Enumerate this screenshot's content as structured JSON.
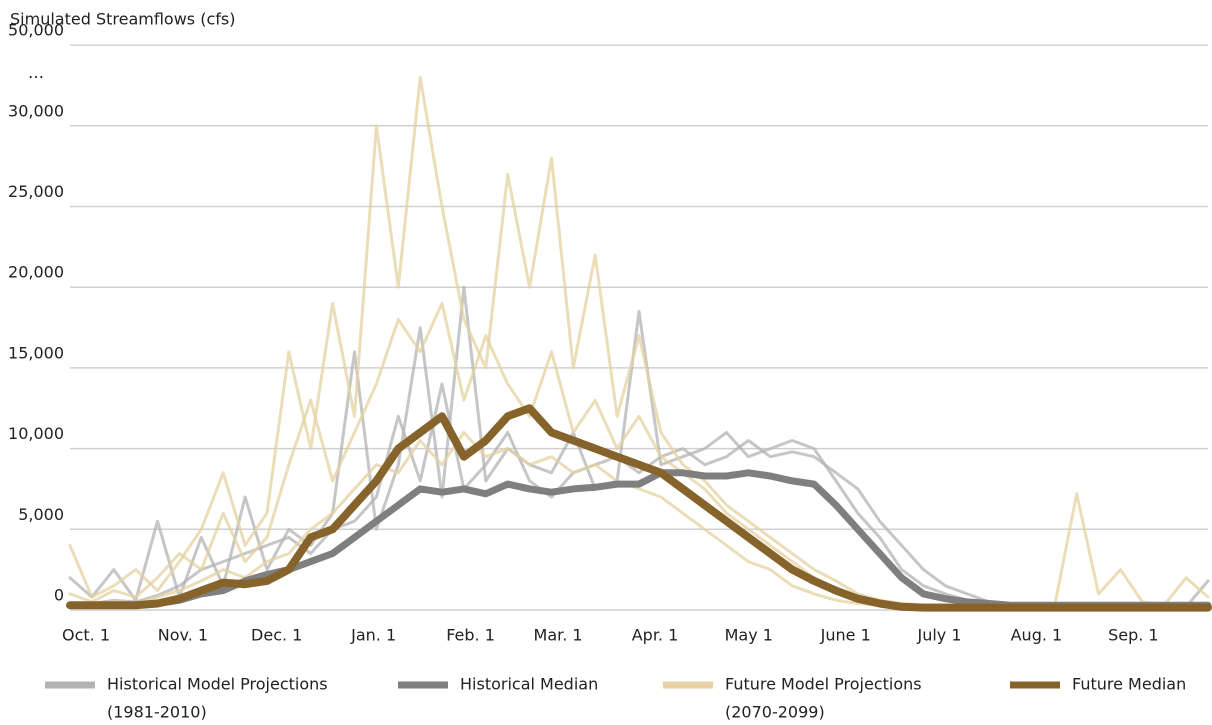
{
  "chart_data": {
    "type": "line",
    "y_label": "Simulated Streamflows (cfs)",
    "axis_break_label": "…",
    "xlim": [
      0,
      364
    ],
    "xticks": [
      {
        "value": 0,
        "label": "Oct. 1"
      },
      {
        "value": 31,
        "label": "Nov. 1"
      },
      {
        "value": 61,
        "label": "Dec. 1"
      },
      {
        "value": 92,
        "label": "Jan. 1"
      },
      {
        "value": 123,
        "label": "Feb. 1"
      },
      {
        "value": 151,
        "label": "Mar. 1"
      },
      {
        "value": 182,
        "label": "Apr. 1"
      },
      {
        "value": 212,
        "label": "May 1"
      },
      {
        "value": 243,
        "label": "June 1"
      },
      {
        "value": 273,
        "label": "July 1"
      },
      {
        "value": 304,
        "label": "Aug. 1"
      },
      {
        "value": 335,
        "label": "Sep. 1"
      }
    ],
    "ylim": [
      0,
      50000
    ],
    "yticks": [
      0,
      {
        "value": 5000,
        "label": "5,000"
      },
      {
        "value": 10000,
        "label": "10,000"
      },
      {
        "value": 15000,
        "label": "15,000"
      },
      {
        "value": 20000,
        "label": "20,000"
      },
      {
        "value": 25000,
        "label": "25,000"
      },
      {
        "value": 30000,
        "label": "30,000"
      },
      {
        "value": 50000,
        "label": "50,000"
      }
    ],
    "grid": true,
    "x": [
      0,
      7,
      14,
      21,
      28,
      35,
      42,
      49,
      56,
      63,
      70,
      77,
      84,
      91,
      98,
      105,
      112,
      119,
      126,
      133,
      140,
      147,
      154,
      161,
      168,
      175,
      182,
      189,
      196,
      203,
      210,
      217,
      224,
      231,
      238,
      245,
      252,
      259,
      266,
      273,
      280,
      287,
      294,
      301,
      308,
      315,
      322,
      329,
      336,
      343,
      350,
      357,
      364
    ],
    "series": [
      {
        "name": "Historical Model Projections",
        "period": "(1981-2010)",
        "color": "#b3b3b3",
        "lines": [
          [
            2000,
            800,
            2500,
            600,
            5500,
            800,
            4500,
            1500,
            7000,
            2500,
            5000,
            4000,
            6000,
            16000,
            5000,
            9000,
            17500,
            7000,
            20000,
            8000,
            10000,
            9000,
            8500,
            11000,
            7500,
            8000,
            18500,
            9000,
            9500,
            10000,
            11000,
            9500,
            10000,
            10500,
            10000,
            8000,
            6000,
            4500,
            2500,
            1500,
            1000,
            600,
            300,
            200,
            200,
            200,
            200,
            200,
            200,
            200,
            200,
            200,
            1800
          ],
          [
            300,
            400,
            600,
            500,
            900,
            1500,
            2500,
            3000,
            3500,
            4000,
            4500,
            3500,
            5000,
            5500,
            7000,
            12000,
            8000,
            14000,
            7500,
            9000,
            11000,
            8000,
            7000,
            8500,
            9000,
            9500,
            8500,
            9500,
            10000,
            9000,
            9500,
            10500,
            9500,
            9800,
            9500,
            8500,
            7500,
            5500,
            4000,
            2500,
            1500,
            1000,
            500,
            300,
            300,
            300,
            300,
            300,
            300,
            300,
            300,
            300,
            300
          ]
        ]
      },
      {
        "name": "Historical Median",
        "color": "#7f7f7f",
        "values": [
          300,
          300,
          300,
          300,
          400,
          600,
          1000,
          1200,
          1800,
          2200,
          2500,
          3000,
          3500,
          4500,
          5500,
          6500,
          7500,
          7300,
          7500,
          7200,
          7800,
          7500,
          7300,
          7500,
          7600,
          7800,
          7800,
          8500,
          8500,
          8300,
          8300,
          8500,
          8300,
          8000,
          7800,
          6500,
          5000,
          3500,
          2000,
          1000,
          700,
          500,
          400,
          300,
          300,
          300,
          300,
          300,
          300,
          300,
          300,
          300,
          300
        ]
      },
      {
        "name": "Future Model Projections",
        "period": "(2070-2099)",
        "color": "#e6d2a2",
        "lines": [
          [
            4000,
            800,
            1500,
            2500,
            1200,
            3000,
            5000,
            8500,
            4000,
            6000,
            16000,
            10000,
            19000,
            12000,
            30000,
            20000,
            42000,
            25000,
            18000,
            15000,
            27000,
            20000,
            28000,
            15000,
            22000,
            12000,
            17000,
            11000,
            9000,
            8000,
            6500,
            5500,
            4500,
            3500,
            2500,
            1800,
            1000,
            600,
            400,
            300,
            300,
            300,
            300,
            300,
            300,
            300,
            7200,
            1000,
            2500,
            500,
            300,
            2000,
            800
          ],
          [
            1000,
            500,
            1200,
            800,
            2000,
            3500,
            2500,
            6000,
            3000,
            4500,
            9000,
            13000,
            8000,
            11000,
            14000,
            18000,
            16000,
            19000,
            13000,
            17000,
            14000,
            12000,
            16000,
            11000,
            13000,
            10000,
            12000,
            9500,
            8500,
            7500,
            6000,
            5000,
            4000,
            3000,
            2000,
            1200,
            800,
            500,
            300,
            300,
            300,
            300,
            300,
            300,
            300,
            300,
            300,
            300,
            300,
            300,
            300,
            300,
            300
          ],
          [
            300,
            300,
            500,
            400,
            800,
            1200,
            1800,
            2500,
            2000,
            3000,
            3500,
            5000,
            6000,
            7500,
            9000,
            8500,
            10500,
            9000,
            11000,
            9500,
            10000,
            9000,
            9500,
            8500,
            9000,
            8000,
            7500,
            7000,
            6000,
            5000,
            4000,
            3000,
            2500,
            1500,
            1000,
            600,
            400,
            300,
            300,
            300,
            300,
            300,
            300,
            300,
            300,
            300,
            300,
            300,
            300,
            300,
            300,
            300,
            300
          ]
        ]
      },
      {
        "name": "Future Median",
        "color": "#85632a",
        "values": [
          300,
          300,
          300,
          300,
          400,
          700,
          1200,
          1700,
          1600,
          1800,
          2500,
          4500,
          5000,
          6500,
          8000,
          10000,
          11000,
          12000,
          9500,
          10500,
          12000,
          12500,
          11000,
          10500,
          10000,
          9500,
          9000,
          8500,
          7500,
          6500,
          5500,
          4500,
          3500,
          2500,
          1800,
          1200,
          700,
          400,
          200,
          150,
          150,
          150,
          150,
          150,
          150,
          150,
          150,
          150,
          150,
          150,
          150,
          150,
          150
        ]
      }
    ]
  }
}
